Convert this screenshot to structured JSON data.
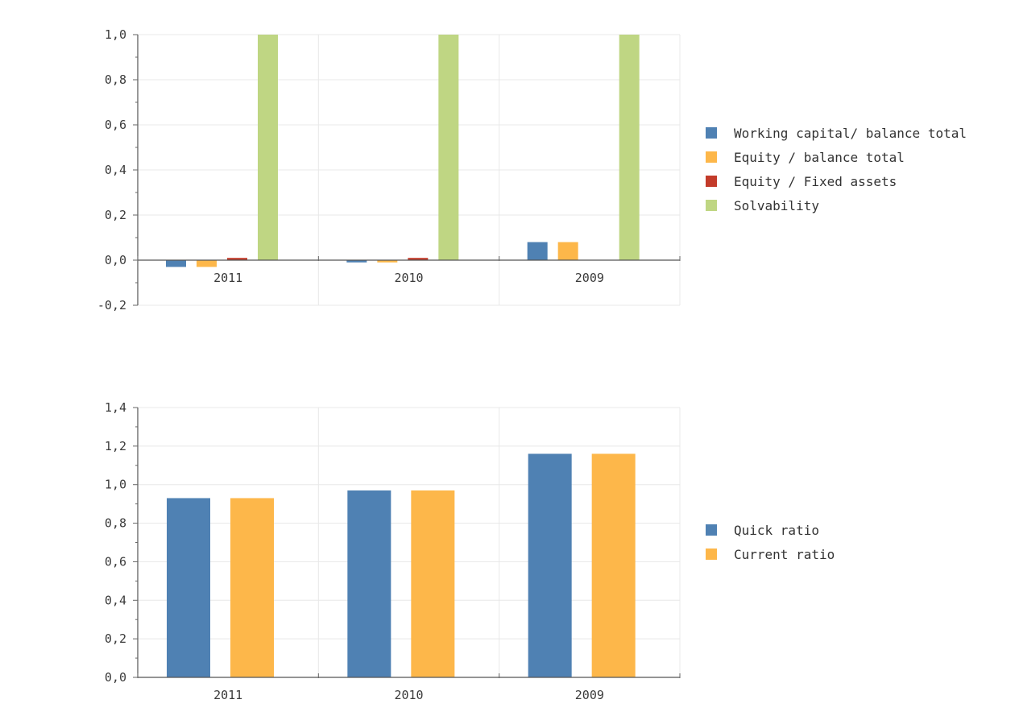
{
  "chart_data": [
    {
      "type": "bar",
      "categories": [
        "2011",
        "2010",
        "2009"
      ],
      "series": [
        {
          "name": "Working capital/ balance total",
          "color": "#4f81b3",
          "values": [
            -0.03,
            -0.01,
            0.08
          ]
        },
        {
          "name": "Equity / balance total",
          "color": "#fdb74a",
          "values": [
            -0.03,
            -0.01,
            0.08
          ]
        },
        {
          "name": "Equity / Fixed assets",
          "color": "#c33b2a",
          "values": [
            0.01,
            0.01,
            0.0
          ]
        },
        {
          "name": "Solvability",
          "color": "#bfd683",
          "values": [
            1.0,
            1.0,
            1.0
          ]
        }
      ],
      "ylim": [
        -0.2,
        1.0
      ],
      "yticks": [
        "-0,2",
        "0,0",
        "0,2",
        "0,4",
        "0,6",
        "0,8",
        "1,0"
      ],
      "ytick_values": [
        -0.2,
        0.0,
        0.2,
        0.4,
        0.6,
        0.8,
        1.0
      ],
      "title": "",
      "xlabel": "",
      "ylabel": "",
      "legend_position": "right"
    },
    {
      "type": "bar",
      "categories": [
        "2011",
        "2010",
        "2009"
      ],
      "series": [
        {
          "name": "Quick ratio",
          "color": "#4f81b3",
          "values": [
            0.93,
            0.97,
            1.16
          ]
        },
        {
          "name": "Current ratio",
          "color": "#fdb74a",
          "values": [
            0.93,
            0.97,
            1.16
          ]
        }
      ],
      "ylim": [
        0.0,
        1.4
      ],
      "yticks": [
        "0,0",
        "0,2",
        "0,4",
        "0,6",
        "0,8",
        "1,0",
        "1,2",
        "1,4"
      ],
      "ytick_values": [
        0.0,
        0.2,
        0.4,
        0.6,
        0.8,
        1.0,
        1.2,
        1.4
      ],
      "title": "",
      "xlabel": "",
      "ylabel": "",
      "legend_position": "right"
    }
  ]
}
